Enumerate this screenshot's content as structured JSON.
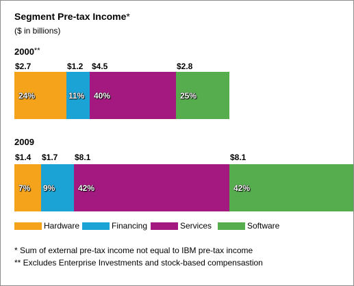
{
  "title": "Segment Pre-tax Income",
  "title_mark": "*",
  "subtitle": "($ in billions)",
  "chart_data": {
    "type": "bar",
    "orientation": "horizontal-stacked",
    "title": "Segment Pre-tax Income",
    "subtitle": "($ in billions)",
    "categories": [
      "2000",
      "2009"
    ],
    "category_labels": [
      {
        "year": "2000",
        "mark": "**"
      },
      {
        "year": "2009",
        "mark": ""
      }
    ],
    "series": [
      {
        "name": "Hardware",
        "color": "#f5a31a",
        "values": [
          2.7,
          1.4
        ],
        "percent_labels": [
          "24%",
          "7%"
        ],
        "value_labels": [
          "$2.7",
          "$1.4"
        ]
      },
      {
        "name": "Financing",
        "color": "#1aa3d4",
        "values": [
          1.2,
          1.7
        ],
        "percent_labels": [
          "11%",
          "9%"
        ],
        "value_labels": [
          "$1.2",
          "$1.7"
        ]
      },
      {
        "name": "Services",
        "color": "#a3197f",
        "values": [
          4.5,
          8.1
        ],
        "percent_labels": [
          "40%",
          "42%"
        ],
        "value_labels": [
          "$4.5",
          "$8.1"
        ]
      },
      {
        "name": "Software",
        "color": "#56ad4e",
        "values": [
          2.8,
          8.1
        ],
        "percent_labels": [
          "25%",
          "42%"
        ],
        "value_labels": [
          "$2.8",
          "$8.1"
        ]
      }
    ],
    "legend": "bottom-left",
    "grid": false
  },
  "footnotes": [
    "* Sum of external pre-tax income not equal to IBM pre-tax income",
    "** Excludes Enterprise Investments and stock-based compensastion"
  ]
}
